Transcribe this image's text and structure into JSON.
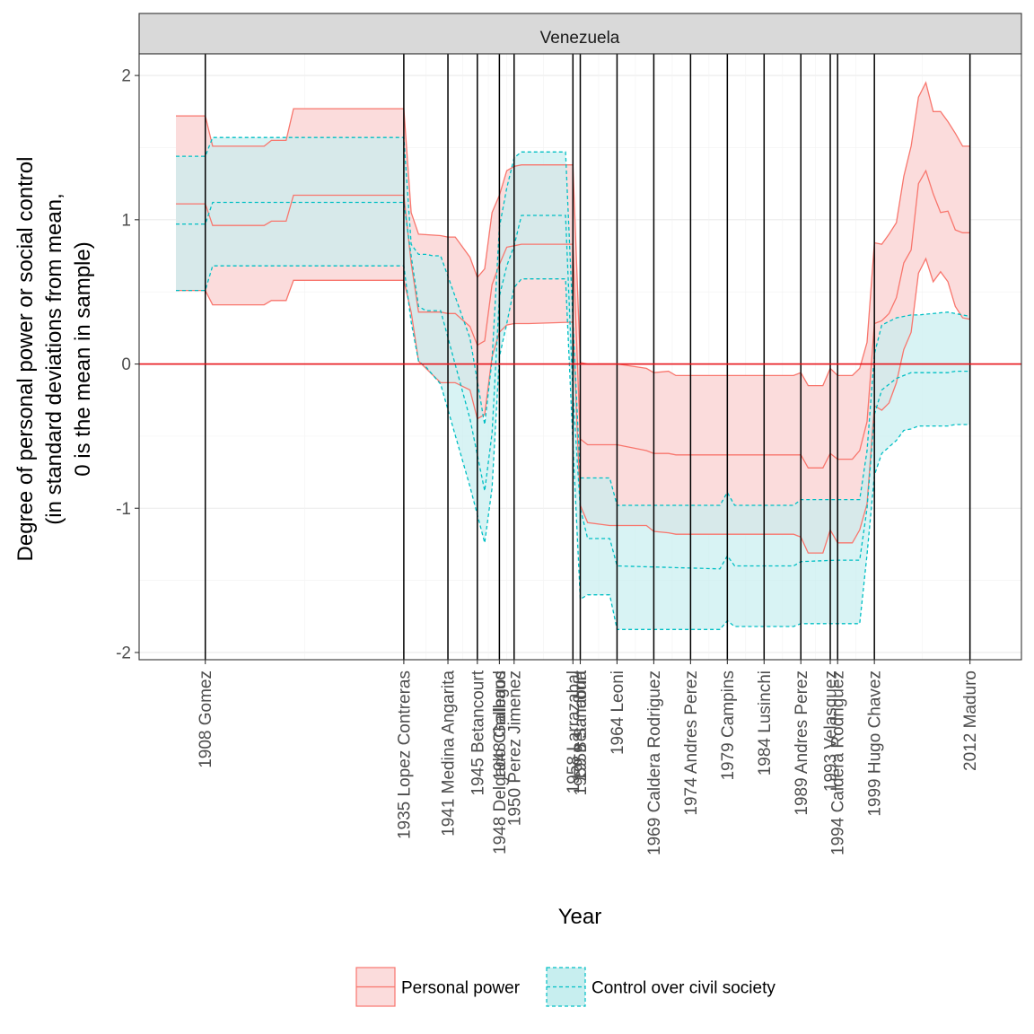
{
  "chart_data": {
    "type": "area",
    "panel": "Venezuela",
    "xlabel": "Year",
    "ylabel_lines": [
      "Degree of personal power or social control",
      "(in standard deviations from mean,",
      "0 is the mean in sample)"
    ],
    "xlim": [
      1899,
      2019
    ],
    "ylim": [
      -2.05,
      2.15
    ],
    "y_ticks": [
      2,
      1,
      0,
      -1,
      -2
    ],
    "y_tick_labels": [
      "2",
      "1",
      "0",
      "-1",
      "-2"
    ],
    "reference_line_y": 0,
    "grid": true,
    "legend_position": "bottom",
    "events": [
      {
        "year": 1908,
        "label": "1908 Gomez"
      },
      {
        "year": 1935,
        "label": "1935 Lopez Contreras"
      },
      {
        "year": 1941,
        "label": "1941 Medina Angarita"
      },
      {
        "year": 1945,
        "label": "1945 Betancourt"
      },
      {
        "year": 1948,
        "label": "1948 Gallegos"
      },
      {
        "year": 1948,
        "label": "1948 Delgado Chalbaud"
      },
      {
        "year": 1950,
        "label": "1950 Perez Jimenez"
      },
      {
        "year": 1958,
        "label": "1958 Larrazabal"
      },
      {
        "year": 1959,
        "label": "1959 Betancourt"
      },
      {
        "year": 1959,
        "label": "1959 Sanabria"
      },
      {
        "year": 1964,
        "label": "1964 Leoni"
      },
      {
        "year": 1969,
        "label": "1969 Caldera Rodriguez"
      },
      {
        "year": 1974,
        "label": "1974 Andres Perez"
      },
      {
        "year": 1979,
        "label": "1979 Campins"
      },
      {
        "year": 1984,
        "label": "1984 Lusinchi"
      },
      {
        "year": 1989,
        "label": "1989 Andres Perez"
      },
      {
        "year": 1993,
        "label": "1993 Velasquez"
      },
      {
        "year": 1994,
        "label": "1994 Caldera Rodriguez"
      },
      {
        "year": 1999,
        "label": "1999 Hugo Chavez"
      },
      {
        "year": 2012,
        "label": "2012 Maduro"
      }
    ],
    "series": [
      {
        "name": "Personal power",
        "color": "#F8766D",
        "fill": "#FBDCDC",
        "linestyle": "solid",
        "x": [
          1904,
          1908,
          1909,
          1916,
          1917,
          1919,
          1920,
          1935,
          1936,
          1937,
          1940,
          1941,
          1942,
          1944,
          1945,
          1946,
          1947,
          1948,
          1949,
          1950,
          1951,
          1952,
          1958,
          1959,
          1960,
          1963,
          1964,
          1968,
          1969,
          1971,
          1972,
          1973,
          1988,
          1989,
          1990,
          1992,
          1993,
          1994,
          1996,
          1997,
          1998,
          1999,
          2000,
          2001,
          2002,
          2003,
          2004,
          2005,
          2006,
          2007,
          2008,
          2009,
          2010,
          2011,
          2012
        ],
        "mean": [
          1.11,
          1.11,
          0.96,
          0.96,
          0.99,
          0.99,
          1.17,
          1.17,
          0.7,
          0.36,
          0.36,
          0.35,
          0.35,
          0.26,
          0.13,
          0.16,
          0.55,
          0.69,
          0.81,
          0.82,
          0.83,
          0.83,
          0.83,
          -0.52,
          -0.56,
          -0.56,
          -0.56,
          -0.6,
          -0.62,
          -0.62,
          -0.63,
          -0.63,
          -0.63,
          -0.63,
          -0.72,
          -0.72,
          -0.62,
          -0.66,
          -0.66,
          -0.6,
          -0.4,
          0.28,
          0.3,
          0.35,
          0.46,
          0.7,
          0.79,
          1.25,
          1.34,
          1.18,
          1.05,
          1.06,
          0.93,
          0.91,
          0.91
        ],
        "lower": [
          0.51,
          0.51,
          0.41,
          0.41,
          0.44,
          0.44,
          0.58,
          0.58,
          0.36,
          0.02,
          -0.13,
          -0.13,
          -0.13,
          -0.18,
          -0.38,
          -0.35,
          0.05,
          0.22,
          0.27,
          0.28,
          0.28,
          0.28,
          0.29,
          -0.98,
          -1.1,
          -1.12,
          -1.12,
          -1.12,
          -1.16,
          -1.17,
          -1.18,
          -1.18,
          -1.18,
          -1.2,
          -1.31,
          -1.31,
          -1.15,
          -1.24,
          -1.24,
          -1.15,
          -0.97,
          -0.29,
          -0.32,
          -0.27,
          -0.13,
          0.1,
          0.22,
          0.63,
          0.73,
          0.57,
          0.64,
          0.57,
          0.4,
          0.32,
          0.31
        ],
        "upper": [
          1.72,
          1.72,
          1.51,
          1.51,
          1.55,
          1.55,
          1.77,
          1.77,
          1.05,
          0.9,
          0.89,
          0.88,
          0.88,
          0.74,
          0.6,
          0.66,
          1.05,
          1.17,
          1.34,
          1.37,
          1.38,
          1.38,
          1.38,
          0.01,
          0.0,
          0.0,
          0.0,
          -0.03,
          -0.06,
          -0.05,
          -0.08,
          -0.08,
          -0.08,
          -0.06,
          -0.15,
          -0.15,
          -0.03,
          -0.08,
          -0.08,
          -0.03,
          0.15,
          0.84,
          0.83,
          0.9,
          0.98,
          1.3,
          1.51,
          1.85,
          1.95,
          1.75,
          1.75,
          1.68,
          1.6,
          1.51,
          1.51
        ]
      },
      {
        "name": "Control over civil society",
        "color": "#00BFC4",
        "fill": "#C7EEEF",
        "linestyle": "dashed",
        "x": [
          1904,
          1908,
          1909,
          1935,
          1936,
          1937,
          1938,
          1939,
          1940,
          1944,
          1946,
          1947,
          1948,
          1949,
          1950,
          1951,
          1957,
          1958,
          1959,
          1960,
          1963,
          1964,
          1978,
          1979,
          1980,
          1988,
          1989,
          1994,
          1997,
          1998,
          1999,
          2000,
          2002,
          2003,
          2004,
          2005,
          2009,
          2010,
          2012
        ],
        "mean": [
          0.97,
          0.97,
          1.12,
          1.12,
          0.75,
          0.4,
          0.37,
          0.37,
          0.37,
          -0.38,
          -0.88,
          -0.48,
          0.47,
          0.68,
          0.82,
          1.03,
          1.03,
          -0.2,
          -1.0,
          -1.21,
          -1.21,
          -1.4,
          -1.42,
          -1.33,
          -1.4,
          -1.4,
          -1.37,
          -1.36,
          -1.36,
          -1.0,
          -0.35,
          -0.18,
          -0.1,
          -0.08,
          -0.06,
          -0.06,
          -0.06,
          -0.05,
          -0.05
        ],
        "lower": [
          0.51,
          0.51,
          0.68,
          0.68,
          0.29,
          0.02,
          -0.02,
          -0.08,
          -0.14,
          -0.85,
          -1.24,
          -0.86,
          0.05,
          0.28,
          0.53,
          0.59,
          0.59,
          -0.55,
          -1.63,
          -1.6,
          -1.6,
          -1.84,
          -1.84,
          -1.78,
          -1.82,
          -1.82,
          -1.8,
          -1.8,
          -1.8,
          -1.32,
          -0.77,
          -0.62,
          -0.53,
          -0.46,
          -0.45,
          -0.43,
          -0.43,
          -0.42,
          -0.42
        ],
        "upper": [
          1.44,
          1.44,
          1.57,
          1.57,
          0.83,
          0.76,
          0.76,
          0.75,
          0.75,
          0.18,
          -0.42,
          0.03,
          0.95,
          1.22,
          1.43,
          1.47,
          1.47,
          0.3,
          -0.79,
          -0.79,
          -0.79,
          -0.98,
          -0.98,
          -0.89,
          -0.98,
          -0.98,
          -0.94,
          -0.94,
          -0.94,
          -0.6,
          0.07,
          0.27,
          0.32,
          0.33,
          0.34,
          0.34,
          0.36,
          0.35,
          0.33
        ]
      }
    ]
  }
}
